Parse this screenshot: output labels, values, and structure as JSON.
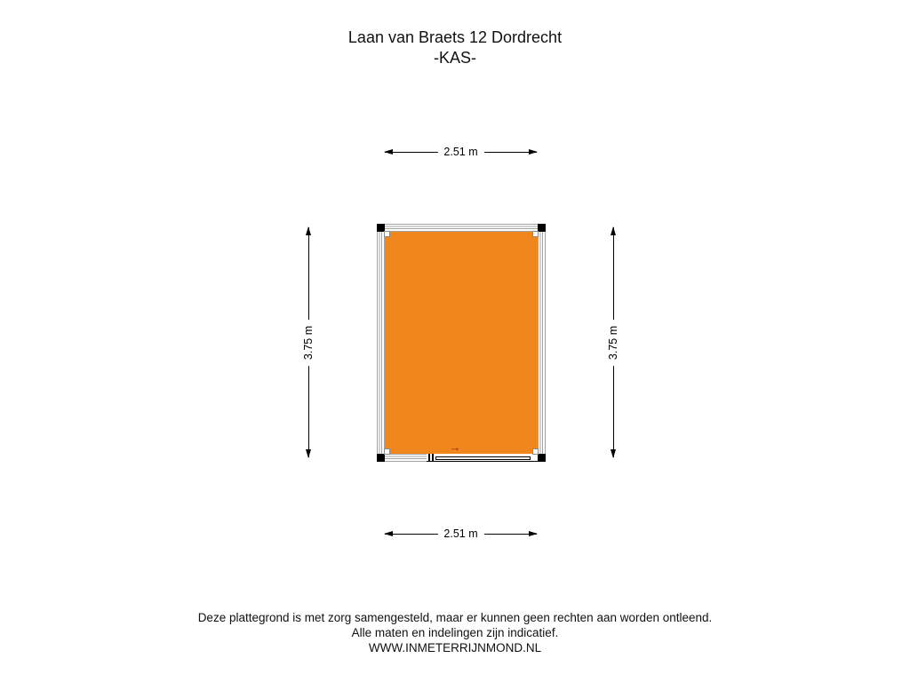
{
  "title": {
    "address": "Laan van Braets 12 Dordrecht",
    "floor": "-KAS-"
  },
  "dimensions": {
    "width_top": "2.51 m",
    "width_bottom": "2.51 m",
    "height_left": "3.75 m",
    "height_right": "3.75 m"
  },
  "floorplan": {
    "room": "kas",
    "door": {
      "type": "sliding-door",
      "arrow_glyph": "→"
    }
  },
  "footer": {
    "disclaimer_line1": "Deze plattegrond is met zorg samengesteld, maar er kunnen geen rechten aan worden ontleend.",
    "disclaimer_line2": "Alle maten en indelingen zijn indicatief.",
    "website": "WWW.INMETERRIJNMOND.NL"
  },
  "colors": {
    "room_fill": "#F1861D",
    "wall_line": "#A3A3A3",
    "door_arrow": "#8B2E00",
    "text": "#111111"
  }
}
